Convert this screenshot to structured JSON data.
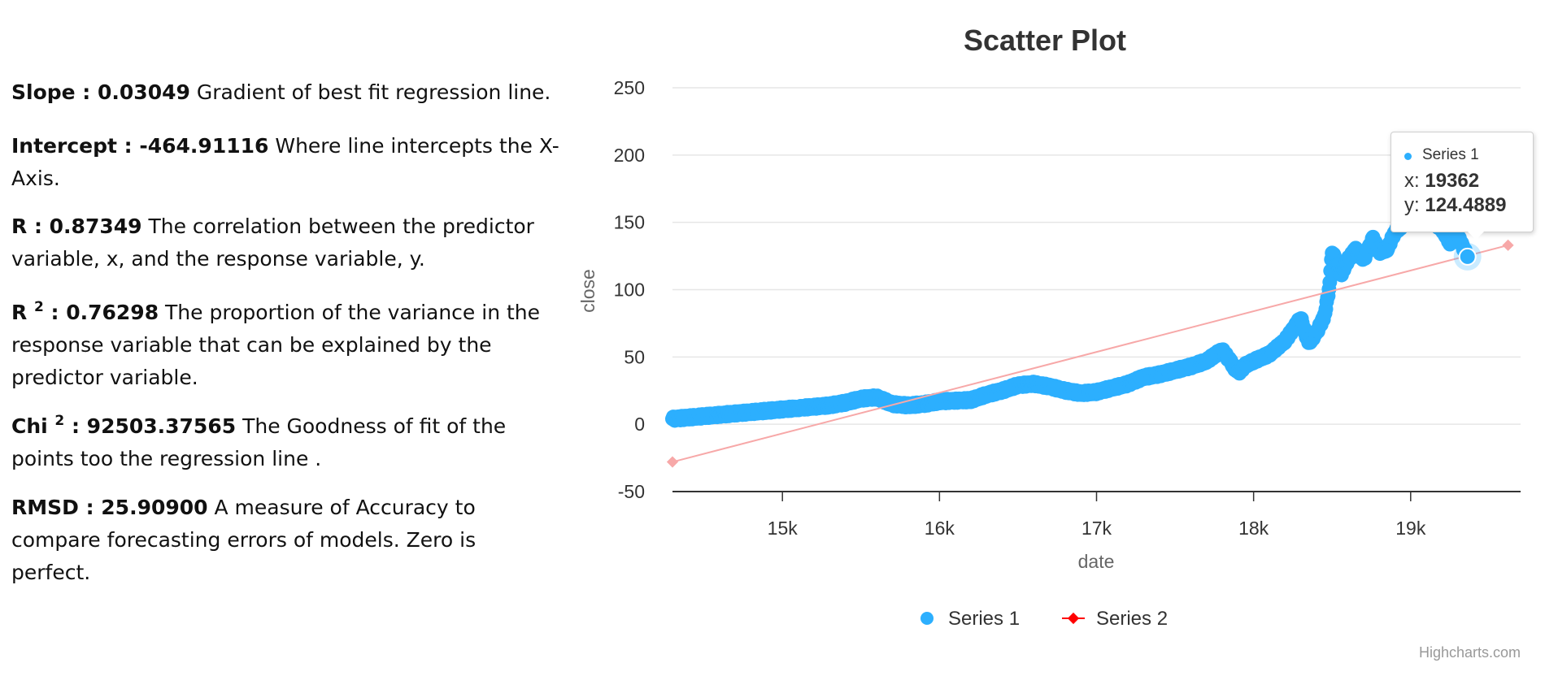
{
  "stats": {
    "slope": {
      "label": "Slope : 0.03049",
      "desc": " Gradient of best fit regression line."
    },
    "intercept": {
      "label": "Intercept : -464.91116",
      "desc": " Where line intercepts the X-",
      "desc2": "Axis."
    },
    "r": {
      "label": "R : 0.87349",
      "desc": " The correlation between the predictor",
      "desc2": "variable, x, and the response variable, y."
    },
    "r2": {
      "label_pre": "R ",
      "sup": "2",
      "label_post": " : 0.76298",
      "desc": " The proportion of the variance in the",
      "desc2": "response variable that can be explained by the",
      "desc3": "predictor variable."
    },
    "chi2": {
      "label_pre": "Chi ",
      "sup": "2",
      "label_post": " : 92503.37565",
      "desc": " The Goodness of fit of the",
      "desc2": "points too the regression line ."
    },
    "rmsd": {
      "label": "RMSD : 25.90900",
      "desc": " A measure of Accuracy to",
      "desc2": "compare forecasting errors of models. Zero is",
      "desc3": "perfect."
    }
  },
  "chart_data": {
    "type": "scatter",
    "title": "Scatter Plot",
    "xlabel": "date",
    "ylabel": "close",
    "xlim": [
      14300,
      19700
    ],
    "ylim": [
      -50,
      250
    ],
    "xticks": [
      15000,
      16000,
      17000,
      18000,
      19000
    ],
    "xtick_labels": [
      "15k",
      "16k",
      "17k",
      "18k",
      "19k"
    ],
    "yticks": [
      -50,
      0,
      50,
      100,
      150,
      200,
      250
    ],
    "ytick_labels": [
      "-50",
      "0",
      "50",
      "100",
      "150",
      "200",
      "250"
    ],
    "grid": true,
    "legend_position": "bottom-center",
    "series": [
      {
        "name": "Series 1",
        "color": "#2caffe",
        "marker": "circle",
        "anchors": [
          [
            14300,
            4
          ],
          [
            14500,
            6
          ],
          [
            14700,
            8
          ],
          [
            14900,
            10
          ],
          [
            15100,
            12
          ],
          [
            15300,
            14
          ],
          [
            15400,
            16
          ],
          [
            15500,
            19
          ],
          [
            15600,
            20
          ],
          [
            15700,
            15
          ],
          [
            15800,
            14
          ],
          [
            15900,
            15
          ],
          [
            16000,
            17
          ],
          [
            16200,
            18
          ],
          [
            16300,
            22
          ],
          [
            16400,
            25
          ],
          [
            16500,
            29
          ],
          [
            16600,
            30
          ],
          [
            16700,
            28
          ],
          [
            16800,
            25
          ],
          [
            16900,
            23
          ],
          [
            17000,
            24
          ],
          [
            17100,
            27
          ],
          [
            17200,
            30
          ],
          [
            17300,
            35
          ],
          [
            17400,
            37
          ],
          [
            17500,
            40
          ],
          [
            17600,
            43
          ],
          [
            17700,
            47
          ],
          [
            17760,
            52
          ],
          [
            17800,
            55
          ],
          [
            17850,
            47
          ],
          [
            17900,
            38
          ],
          [
            17950,
            44
          ],
          [
            18000,
            47
          ],
          [
            18100,
            52
          ],
          [
            18200,
            62
          ],
          [
            18260,
            72
          ],
          [
            18300,
            79
          ],
          [
            18350,
            60
          ],
          [
            18400,
            68
          ],
          [
            18450,
            80
          ],
          [
            18480,
            100
          ],
          [
            18500,
            128
          ],
          [
            18530,
            120
          ],
          [
            18560,
            112
          ],
          [
            18600,
            122
          ],
          [
            18650,
            130
          ],
          [
            18700,
            122
          ],
          [
            18760,
            138
          ],
          [
            18800,
            128
          ],
          [
            18850,
            130
          ],
          [
            18900,
            143
          ],
          [
            18950,
            148
          ],
          [
            19000,
            152
          ],
          [
            19050,
            160
          ],
          [
            19100,
            168
          ],
          [
            19150,
            150
          ],
          [
            19200,
            145
          ],
          [
            19250,
            135
          ],
          [
            19300,
            140
          ],
          [
            19362,
            124.4889
          ]
        ]
      },
      {
        "name": "Series 2",
        "color": "#f7a8a8",
        "legend_color": "#ff0000",
        "marker": "diamond",
        "points": [
          [
            14300,
            -28
          ],
          [
            19620,
            133
          ]
        ]
      }
    ],
    "tooltip": {
      "series": "Series 1",
      "x_label": "x: ",
      "x_value": "19362",
      "y_label": "y: ",
      "y_value": "124.4889"
    },
    "credits": "Highcharts.com"
  }
}
